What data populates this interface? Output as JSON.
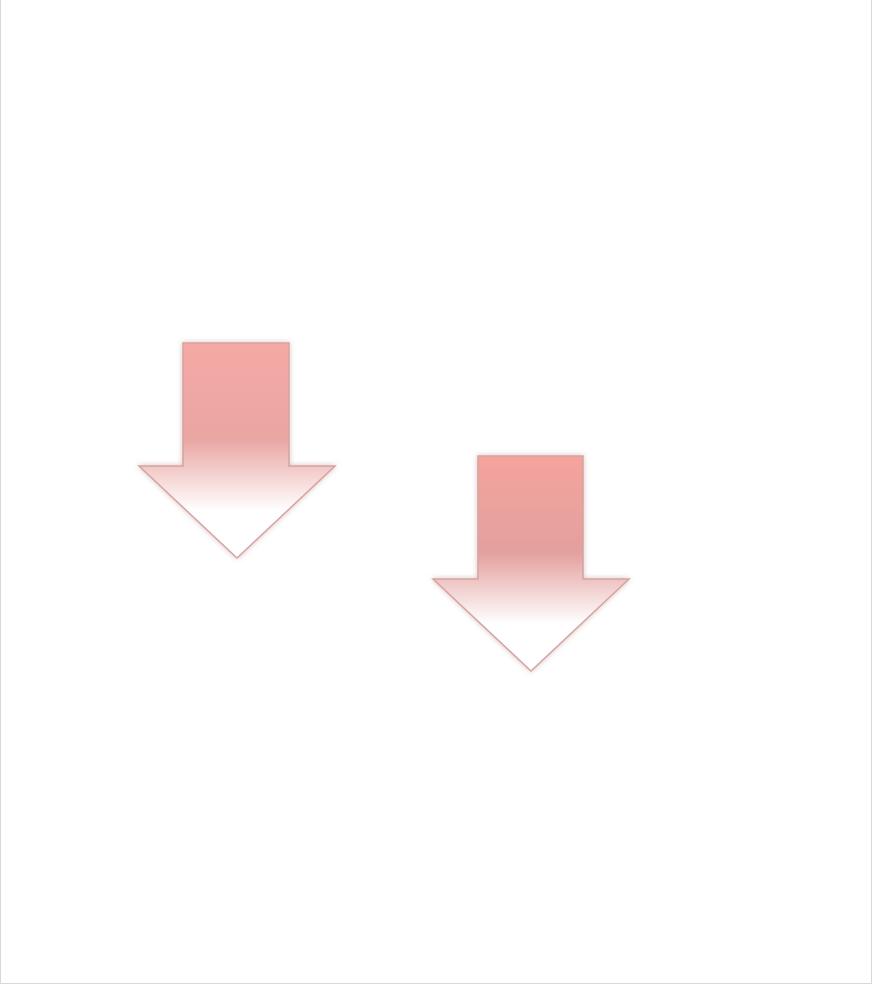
{
  "shapes": [
    {
      "kind": "down-arrow",
      "icon": "arrow-down-icon",
      "fill_top": "#f6a9a4",
      "fill_mid": "#e9a6a3",
      "fill_bottom": "#ffffff",
      "stroke": "#d4a3a1"
    },
    {
      "kind": "down-arrow",
      "icon": "arrow-down-icon",
      "fill_top": "#f5a39d",
      "fill_mid": "#e3a09e",
      "fill_bottom": "#ffffff",
      "stroke": "#d4a3a1"
    }
  ]
}
